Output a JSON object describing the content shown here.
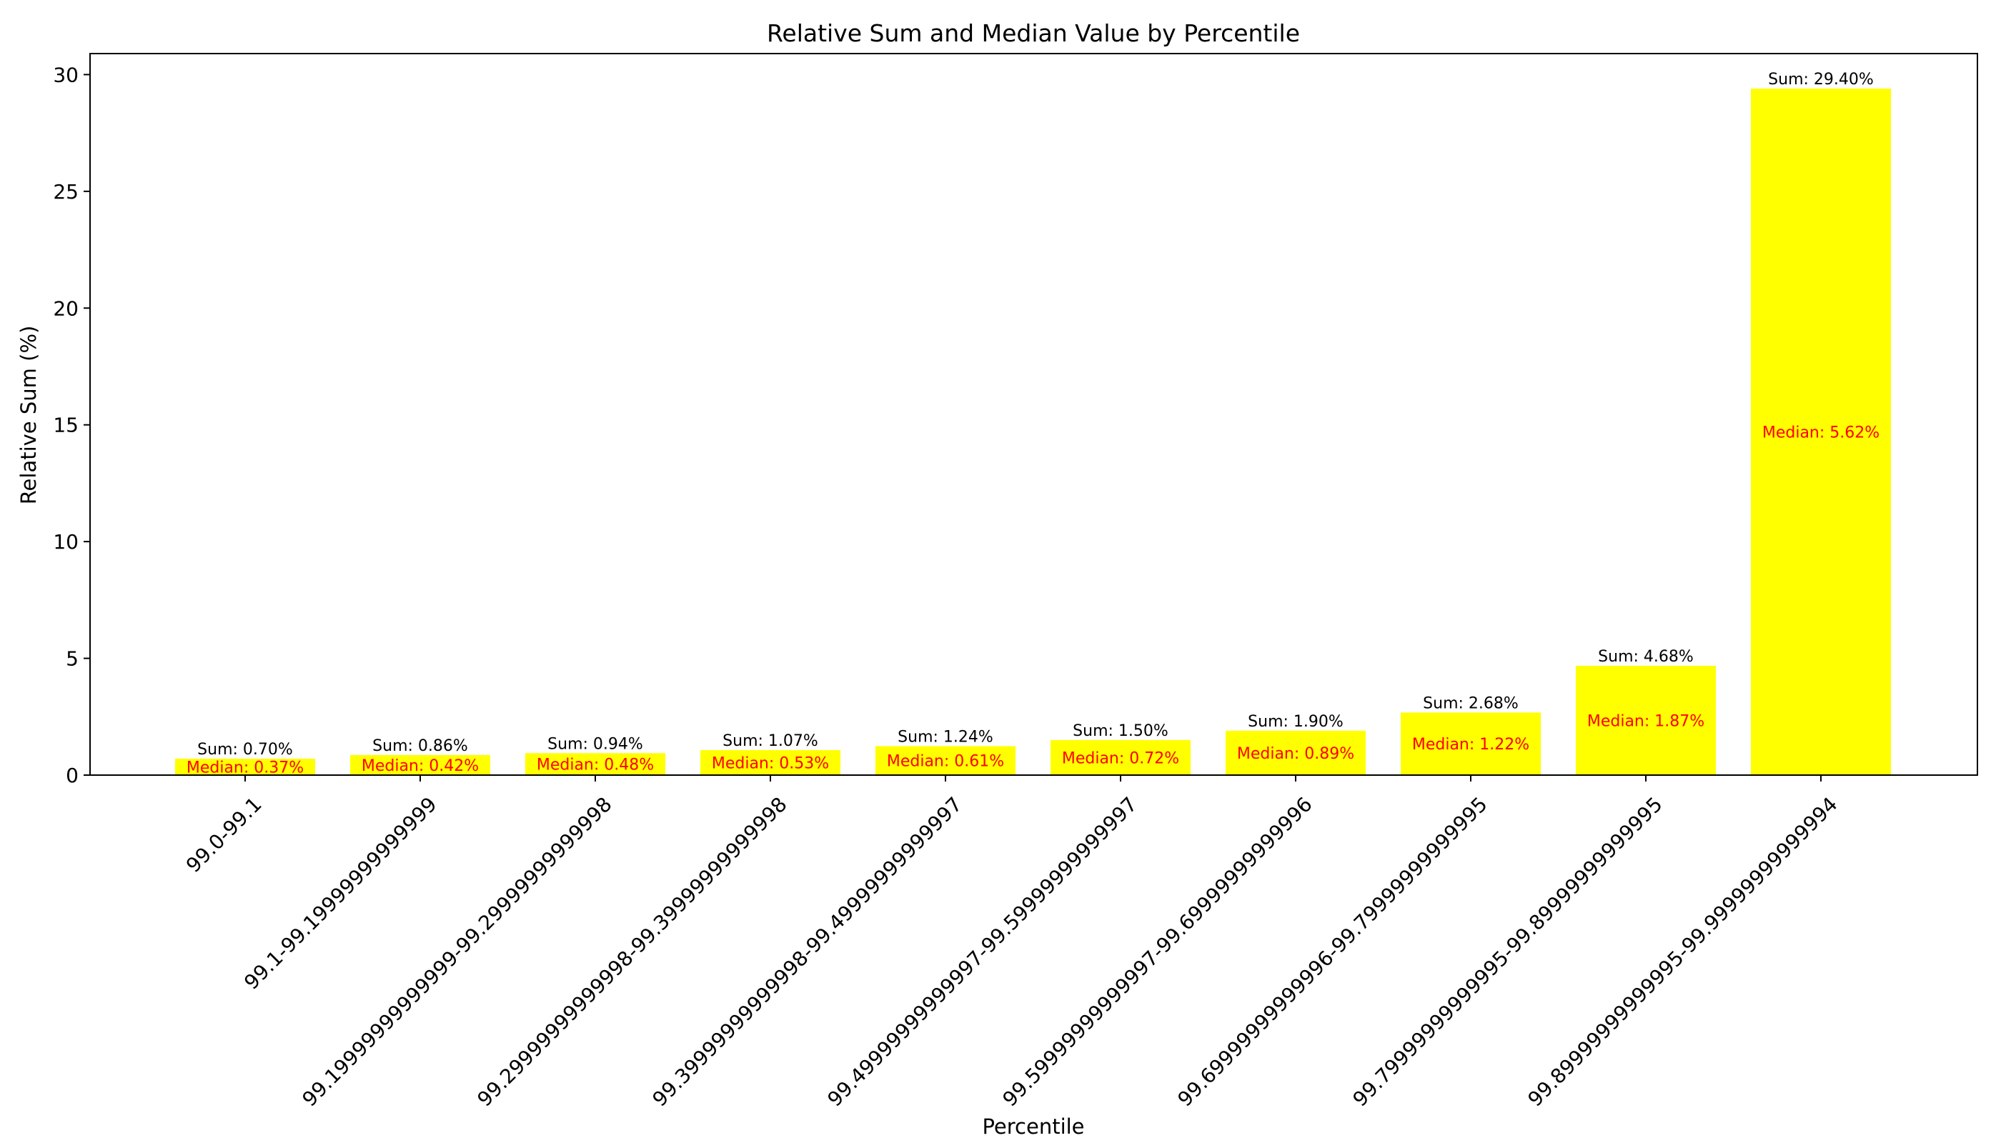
{
  "chart_data": {
    "type": "bar",
    "title": "Relative Sum and Median Value by Percentile",
    "xlabel": "Percentile",
    "ylabel": "Relative Sum (%)",
    "ylim": [
      0,
      30.9
    ],
    "yticks": [
      0,
      5,
      10,
      15,
      20,
      25,
      30
    ],
    "grid": false,
    "categories": [
      "99.0-99.1",
      "99.1-99.19999999999999",
      "99.19999999999999-99.29999999999998",
      "99.29999999999998-99.39999999999998",
      "99.39999999999998-99.49999999999997",
      "99.49999999999997-99.59999999999997",
      "99.59999999999997-99.69999999999996",
      "99.69999999999996-99.79999999999995",
      "99.79999999999995-99.89999999999995",
      "99.89999999999995-99.99999999999994"
    ],
    "series": [
      {
        "name": "Sum",
        "values": [
          0.7,
          0.86,
          0.94,
          1.07,
          1.24,
          1.5,
          1.9,
          2.68,
          4.68,
          29.4
        ]
      },
      {
        "name": "Median",
        "values": [
          0.37,
          0.42,
          0.48,
          0.53,
          0.61,
          0.72,
          0.89,
          1.22,
          1.87,
          5.62
        ]
      }
    ],
    "sum_labels": [
      "Sum: 0.70%",
      "Sum: 0.86%",
      "Sum: 0.94%",
      "Sum: 1.07%",
      "Sum: 1.24%",
      "Sum: 1.50%",
      "Sum: 1.90%",
      "Sum: 2.68%",
      "Sum: 4.68%",
      "Sum: 29.40%"
    ],
    "median_labels": [
      "Median: 0.37%",
      "Median: 0.42%",
      "Median: 0.48%",
      "Median: 0.53%",
      "Median: 0.61%",
      "Median: 0.72%",
      "Median: 0.89%",
      "Median: 1.22%",
      "Median: 1.87%",
      "Median: 5.62%"
    ],
    "colors": {
      "bar": "#ffff00",
      "median_text": "#ff0000",
      "sum_text": "#000000"
    }
  }
}
